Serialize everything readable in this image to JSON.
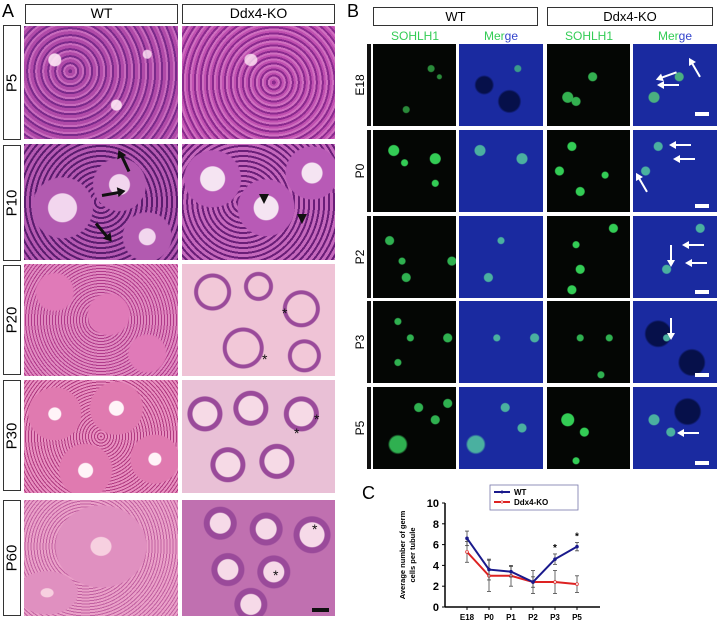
{
  "panel_a": {
    "letter": "A",
    "columns": [
      "WT",
      "Ddx4-KO"
    ],
    "rows": [
      "P5",
      "P10",
      "P20",
      "P30",
      "P60"
    ],
    "annotation_symbols": {
      "star": "*"
    }
  },
  "panel_b": {
    "letter": "B",
    "groups": [
      "WT",
      "Ddx4-KO"
    ],
    "sub_columns": [
      "SOHLH1",
      "Merge",
      "SOHLH1",
      "Merge"
    ],
    "merge_word_parts": [
      "Mer",
      "ge"
    ],
    "rows": [
      "E18",
      "P0",
      "P2",
      "P3",
      "P5"
    ],
    "colors": {
      "sohlh1": "#22cc44",
      "merge_green": "#22cc44",
      "merge_blue": "#2233cc",
      "dapi_bg": "#0d1a8a"
    }
  },
  "panel_c": {
    "letter": "C"
  },
  "chart_data": {
    "type": "line",
    "title": "",
    "xlabel": "",
    "ylabel": "Average number of germ cells per tubule",
    "ylabel_lines": [
      "Average number of germ",
      "cells per tubule"
    ],
    "categories": [
      "E18",
      "P0",
      "P1",
      "P2",
      "P3",
      "P5"
    ],
    "ylim": [
      0,
      10
    ],
    "yticks": [
      "0",
      "2",
      "4",
      "6",
      "8",
      "10"
    ],
    "grid": false,
    "legend_position": "top",
    "series": [
      {
        "name": "WT",
        "color": "#1a1a8c",
        "values": [
          6.6,
          3.6,
          3.4,
          2.4,
          4.6,
          5.8
        ],
        "errors": [
          0.7,
          1.0,
          0.5,
          0.5,
          0.5,
          0.4
        ]
      },
      {
        "name": "Ddx4-KO",
        "color": "#dd2222",
        "values": [
          5.3,
          3.0,
          3.0,
          2.4,
          2.4,
          2.2
        ],
        "errors": [
          1.0,
          1.5,
          1.0,
          1.1,
          1.1,
          0.8
        ]
      }
    ],
    "significance": [
      {
        "category": "P3",
        "mark": "*"
      },
      {
        "category": "P5",
        "mark": "*"
      }
    ]
  }
}
